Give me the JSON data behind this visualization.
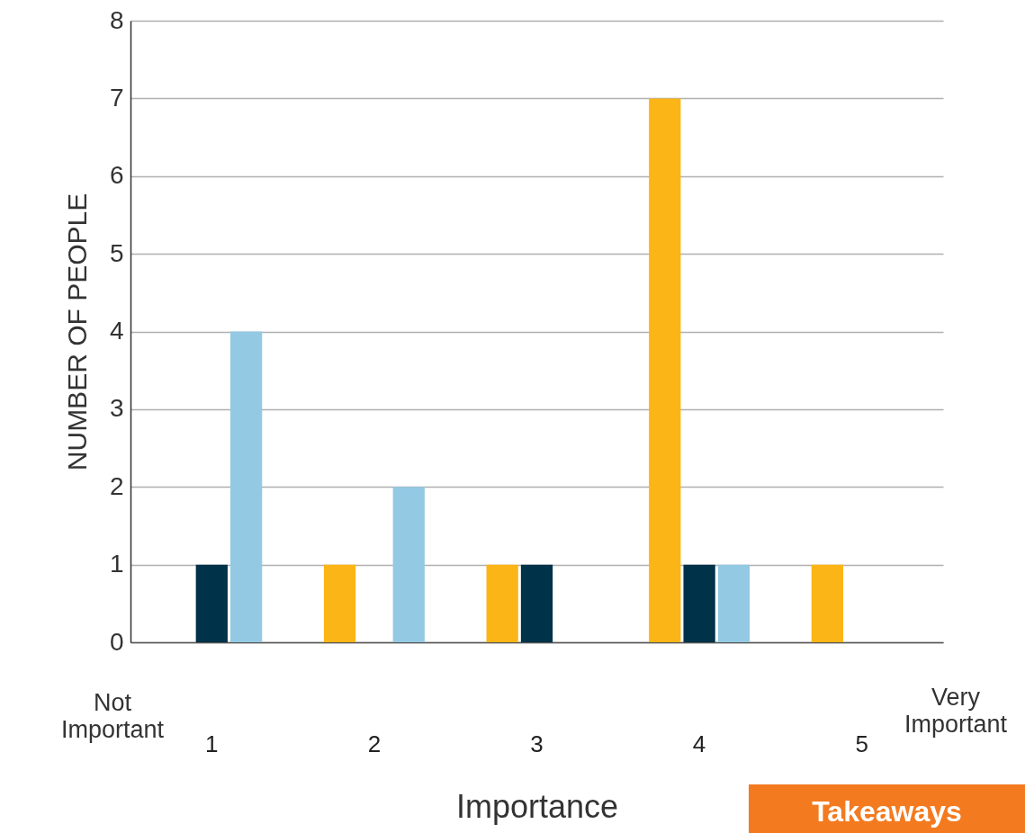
{
  "chart_data": {
    "type": "bar",
    "xlabel": "Importance",
    "ylabel": "NUMBER OF PEOPLE",
    "categories": [
      "1",
      "2",
      "3",
      "4",
      "5"
    ],
    "series": [
      {
        "color": "#fbb516",
        "values": [
          0,
          1,
          1,
          7,
          1
        ]
      },
      {
        "color": "#003249",
        "values": [
          1,
          0,
          1,
          1,
          0
        ]
      },
      {
        "color": "#93c9e3",
        "values": [
          4,
          2,
          0,
          1,
          0
        ]
      }
    ],
    "ylim": [
      0,
      8
    ],
    "yticks": [
      0,
      1,
      2,
      3,
      4,
      5,
      6,
      7,
      8
    ],
    "grid": "y",
    "annotations": [
      "Not Important",
      "Very Important",
      "Takeaways"
    ]
  }
}
